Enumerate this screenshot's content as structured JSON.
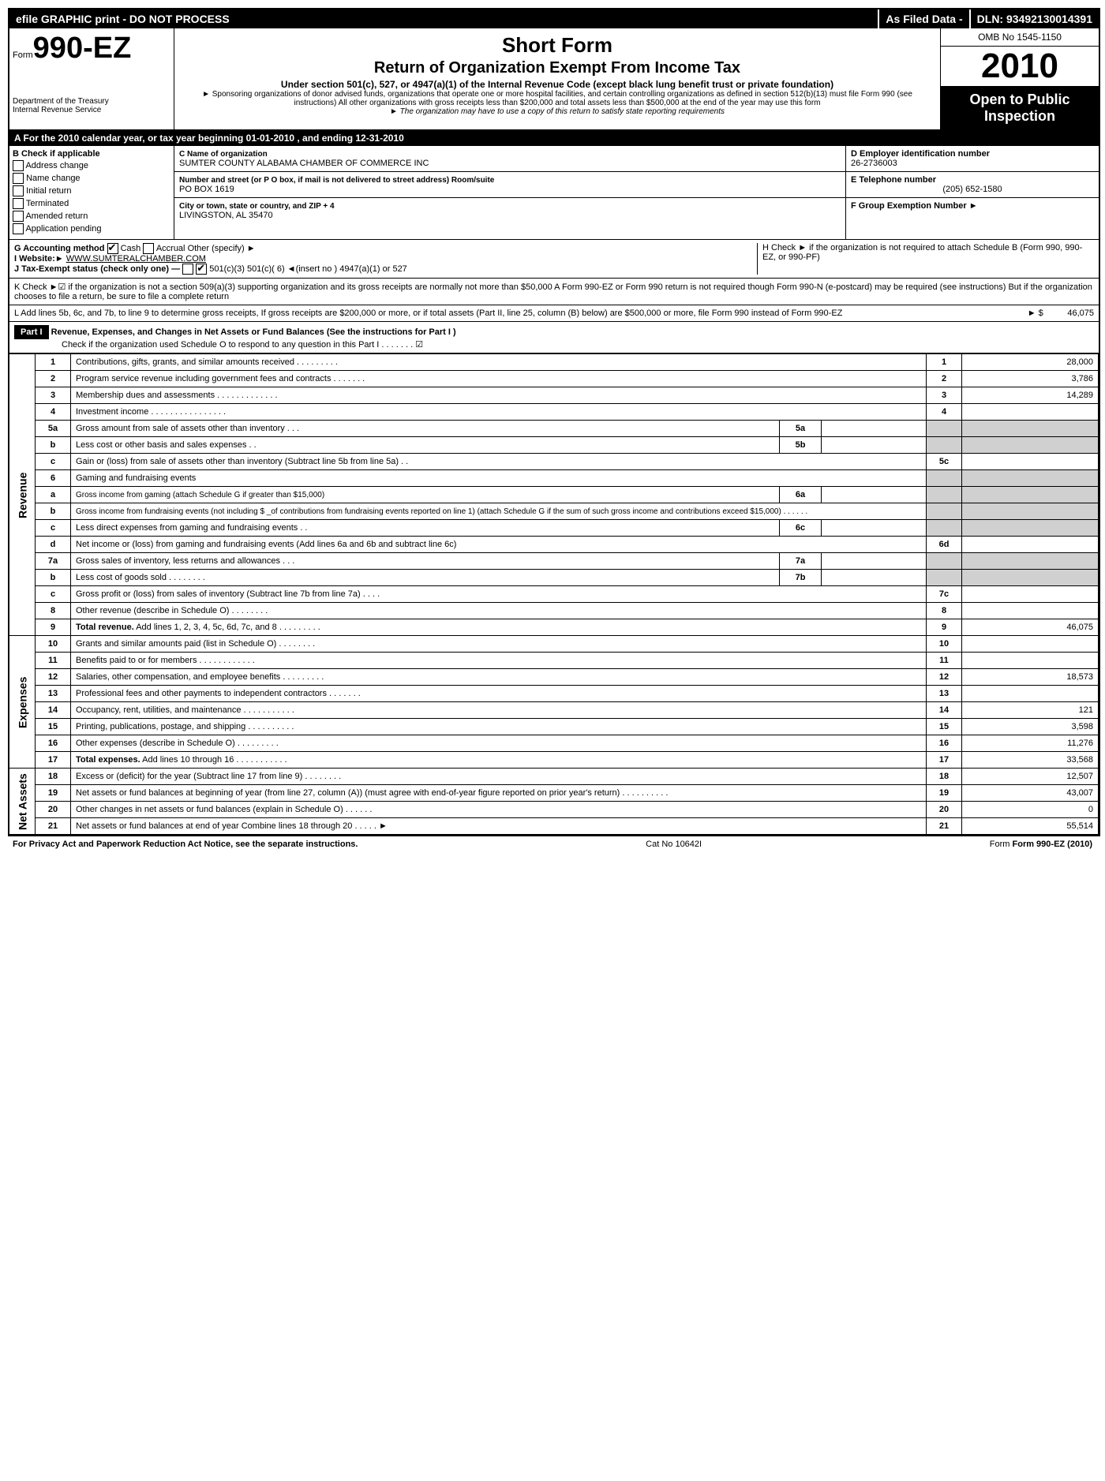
{
  "top": {
    "left": "efile GRAPHIC print - DO NOT PROCESS",
    "mid": "As Filed Data -",
    "right": "DLN: 93492130014391"
  },
  "header": {
    "form_prefix": "Form",
    "form_number": "990-EZ",
    "dept": "Department of the Treasury",
    "irs": "Internal Revenue Service",
    "short_form": "Short Form",
    "title": "Return of Organization Exempt From Income Tax",
    "subtitle": "Under section 501(c), 527, or 4947(a)(1) of the Internal Revenue Code (except black lung benefit trust or private foundation)",
    "sponsor": "► Sponsoring organizations of donor advised funds, organizations that operate one or more hospital facilities, and certain controlling organizations as defined in section 512(b)(13) must file Form 990 (see instructions) All other organizations with gross receipts less than $200,000 and total assets less than $500,000 at the end of the year may use this form",
    "copy_note": "► The organization may have to use a copy of this return to satisfy state reporting requirements",
    "omb": "OMB No 1545-1150",
    "year": "2010",
    "open": "Open to Public Inspection"
  },
  "rowA": "A  For the 2010 calendar year, or tax year beginning 01-01-2010                                   , and ending 12-31-2010",
  "boxB": {
    "title": "B  Check if applicable",
    "items": [
      "Address change",
      "Name change",
      "Initial return",
      "Terminated",
      "Amended return",
      "Application pending"
    ]
  },
  "boxC": {
    "name_label": "C Name of organization",
    "name": "SUMTER COUNTY ALABAMA CHAMBER OF COMMERCE INC",
    "addr_label": "Number and street (or P O box, if mail is not delivered to street address) Room/suite",
    "addr": "PO BOX 1619",
    "city_label": "City or town, state or country, and ZIP + 4",
    "city": "LIVINGSTON, AL  35470"
  },
  "boxD": {
    "ein_label": "D Employer identification number",
    "ein": "26-2736003",
    "tel_label": "E Telephone number",
    "tel": "(205) 652-1580",
    "grp_label": "F Group Exemption Number ►"
  },
  "rowG": {
    "g": "G Accounting method",
    "cash": "Cash",
    "accrual": "Accrual",
    "other": "Other (specify) ►",
    "i": "I Website:►",
    "website": "WWW.SUMTERALCHAMBER.COM",
    "j": "J Tax-Exempt status (check only one) —",
    "j_opts": "501(c)(3)     501(c)( 6) ◄(insert no )     4947(a)(1) or      527",
    "h": "H  Check ►      if the organization is not required to attach Schedule B (Form 990, 990-EZ, or 990-PF)"
  },
  "rowK": "K Check ►☑ if the organization is not a section 509(a)(3) supporting organization and its gross receipts are normally not more than $50,000  A Form 990-EZ or Form 990 return is not required though Form 990-N (e-postcard) may be required (see instructions)  But if the organization chooses to file a return, be sure to file a complete return",
  "rowL": {
    "text": "L Add lines 5b, 6c, and 7b, to line 9 to determine gross receipts, If gross receipts are $200,000 or more, or if total assets (Part II, line 25, column (B) below) are $500,000 or more, file Form 990 instead of Form 990-EZ",
    "amount_label": "► $",
    "amount": "46,075"
  },
  "part1": {
    "label": "Part I",
    "title": "Revenue, Expenses, and Changes in Net Assets or Fund Balances (See the instructions for Part I )",
    "check_line": "Check if the organization used Schedule O to respond to any question in this Part I    .    .    .    .    .    .    . ☑"
  },
  "sections": {
    "revenue": "Revenue",
    "expenses": "Expenses",
    "netassets": "Net Assets"
  },
  "lines": [
    {
      "n": "1",
      "desc": "Contributions, gifts, grants, and similar amounts received    .    .    .    .    .    .    .    .    .",
      "fn": "1",
      "fv": "28,000"
    },
    {
      "n": "2",
      "desc": "Program service revenue including government fees and contracts    .    .    .    .    .    .    .",
      "fn": "2",
      "fv": "3,786"
    },
    {
      "n": "3",
      "desc": "Membership dues and assessments    .    .    .    .    .    .    .    .    .    .    .    .    .",
      "fn": "3",
      "fv": "14,289"
    },
    {
      "n": "4",
      "desc": "Investment income    .    .    .    .    .    .    .    .    .    .    .    .    .    .    .    .",
      "fn": "4",
      "fv": ""
    },
    {
      "n": "5a",
      "desc": "Gross amount from sale of assets other than inventory    .    .    .",
      "sn": "5a",
      "sv": "",
      "shadeFinal": true
    },
    {
      "n": "b",
      "desc": "Less  cost or other basis and sales expenses    .    .",
      "sn": "5b",
      "sv": "",
      "shadeFinal": true
    },
    {
      "n": "c",
      "desc": "Gain or (loss) from sale of assets other than inventory (Subtract line 5b from line 5a)    .    .",
      "fn": "5c",
      "fv": ""
    },
    {
      "n": "6",
      "desc": "Gaming and fundraising events",
      "shadeFinal": true,
      "nosub": true
    },
    {
      "n": "a",
      "desc": "Gross income from gaming (attach Schedule G if greater than $15,000)",
      "sn": "6a",
      "sv": "",
      "shadeFinal": true,
      "small": true
    },
    {
      "n": "b",
      "desc": "Gross income from fundraising events (not including $ _of contributions from fundraising events reported on line 1) (attach Schedule G if the sum of such gross income and contributions exceed $15,000)    .    .    .    .    .    .",
      "shadeFinal": true,
      "nosub": true,
      "small": true
    },
    {
      "n": "c",
      "desc": "Less  direct expenses from gaming and fundraising events    .    .",
      "sn": "6c",
      "sv": "",
      "shadeFinal": true
    },
    {
      "n": "d",
      "desc": "Net income or (loss) from gaming and fundraising events (Add lines 6a and 6b and subtract line 6c)",
      "fn": "6d",
      "fv": ""
    },
    {
      "n": "7a",
      "desc": "Gross sales of inventory, less returns and allowances    .    .    .",
      "sn": "7a",
      "sv": "",
      "shadeFinal": true
    },
    {
      "n": "b",
      "desc": "Less  cost of goods sold    .    .    .    .    .    .    .    .",
      "sn": "7b",
      "sv": "",
      "shadeFinal": true
    },
    {
      "n": "c",
      "desc": "Gross profit or (loss) from sales of inventory (Subtract line 7b from line 7a)    .    .    .    .",
      "fn": "7c",
      "fv": ""
    },
    {
      "n": "8",
      "desc": "Other revenue (describe in Schedule O)    .    .    .    .    .    .    .    .",
      "fn": "8",
      "fv": ""
    },
    {
      "n": "9",
      "desc": "Total revenue. Add lines 1, 2, 3, 4, 5c, 6d, 7c, and 8    .    .    .    .    .    .    .    .    .",
      "fn": "9",
      "fv": "46,075",
      "bold": true
    }
  ],
  "exp_lines": [
    {
      "n": "10",
      "desc": "Grants and similar amounts paid (list in Schedule O)    .    .    .    .    .    .    .    .",
      "fn": "10",
      "fv": ""
    },
    {
      "n": "11",
      "desc": "Benefits paid to or for members    .    .    .    .    .    .    .    .    .    .    .    .",
      "fn": "11",
      "fv": ""
    },
    {
      "n": "12",
      "desc": "Salaries, other compensation, and employee benefits    .    .    .    .    .    .    .    .    .",
      "fn": "12",
      "fv": "18,573"
    },
    {
      "n": "13",
      "desc": "Professional fees and other payments to independent contractors    .    .    .    .    .    .    .",
      "fn": "13",
      "fv": ""
    },
    {
      "n": "14",
      "desc": "Occupancy, rent, utilities, and maintenance    .    .    .    .    .    .    .    .    .    .    .",
      "fn": "14",
      "fv": "121"
    },
    {
      "n": "15",
      "desc": "Printing, publications, postage, and shipping    .    .    .    .    .    .    .    .    .    .",
      "fn": "15",
      "fv": "3,598"
    },
    {
      "n": "16",
      "desc": "Other expenses (describe in Schedule O)    .    .    .    .    .    .    .    .    .",
      "fn": "16",
      "fv": "11,276"
    },
    {
      "n": "17",
      "desc": "Total expenses. Add lines 10 through 16    .    .    .    .    .    .    .    .    .    .    .",
      "fn": "17",
      "fv": "33,568",
      "bold": true
    }
  ],
  "na_lines": [
    {
      "n": "18",
      "desc": "Excess or (deficit) for the year (Subtract line 17 from line 9)    .    .    .    .    .    .    .    .",
      "fn": "18",
      "fv": "12,507"
    },
    {
      "n": "19",
      "desc": "Net assets or fund balances at beginning of year (from line 27, column (A)) (must agree with end-of-year figure reported on prior year's return)    .    .    .    .    .    .    .    .    .    .",
      "fn": "19",
      "fv": "43,007"
    },
    {
      "n": "20",
      "desc": "Other changes in net assets or fund balances (explain in Schedule O)    .    .    .    .    .    .",
      "fn": "20",
      "fv": "0"
    },
    {
      "n": "21",
      "desc": "Net assets or fund balances at end of year  Combine lines 18 through 20    .    .    .    .    . ►",
      "fn": "21",
      "fv": "55,514"
    }
  ],
  "footer": {
    "left": "For Privacy Act and Paperwork Reduction Act Notice, see the separate instructions.",
    "mid": "Cat No 10642I",
    "right": "Form 990-EZ (2010)"
  }
}
